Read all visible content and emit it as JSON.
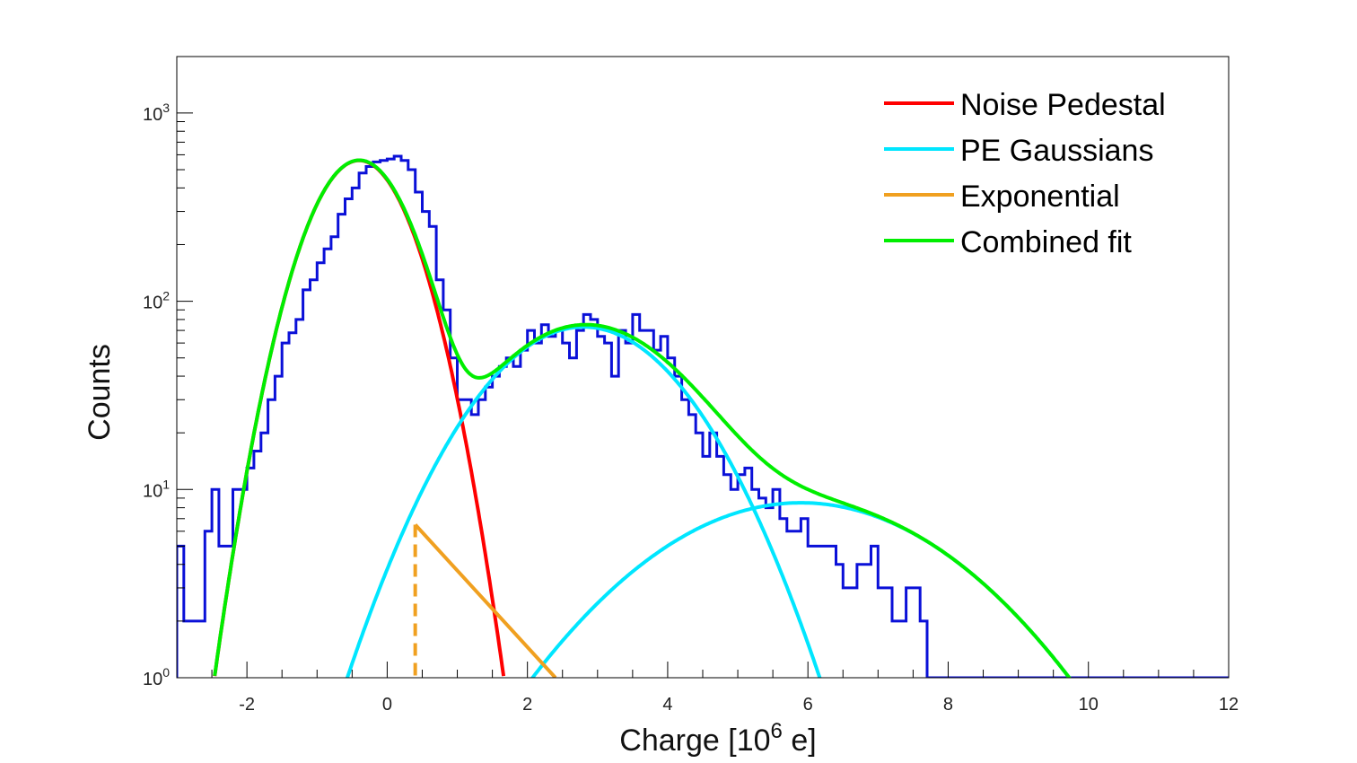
{
  "chart_data": {
    "type": "line",
    "xlabel": "Charge [10",
    "xlabel_sup": "6",
    "xlabel_suffix": " e]",
    "ylabel": "Counts",
    "x_range": [
      -3,
      12
    ],
    "y_range_log10": [
      0,
      3.3
    ],
    "y_scale": "log",
    "x_ticks": [
      -2,
      0,
      2,
      4,
      6,
      8,
      10,
      12
    ],
    "x_tick_labels": [
      "-2",
      "0",
      "2",
      "4",
      "6",
      "8",
      "10",
      "12"
    ],
    "y_ticks": [
      {
        "base": "10",
        "exp": "0",
        "value": 1
      },
      {
        "base": "10",
        "exp": "1",
        "value": 10
      },
      {
        "base": "10",
        "exp": "2",
        "value": 100
      },
      {
        "base": "10",
        "exp": "3",
        "value": 1000
      }
    ],
    "legend": {
      "placement": "top-right",
      "entries": [
        {
          "label": "Noise Pedestal",
          "color": "#ff0000"
        },
        {
          "label": "PE Gaussians",
          "color": "#00e6ff"
        },
        {
          "label": "Exponential",
          "color": "#f0a020"
        },
        {
          "label": "Combined fit",
          "color": "#00ee00"
        }
      ]
    },
    "histogram": {
      "name": "Data",
      "color": "#0a10d8",
      "bin_width": 0.1,
      "x_start": -3.0,
      "counts": [
        5,
        2,
        2,
        2,
        6,
        10,
        5,
        5,
        10,
        10,
        13,
        16,
        20,
        30,
        40,
        60,
        68,
        80,
        115,
        130,
        160,
        190,
        220,
        290,
        350,
        400,
        480,
        520,
        550,
        560,
        570,
        590,
        560,
        500,
        380,
        300,
        250,
        130,
        90,
        50,
        30,
        30,
        25,
        30,
        35,
        40,
        45,
        50,
        45,
        55,
        70,
        60,
        75,
        65,
        70,
        60,
        50,
        70,
        85,
        80,
        65,
        60,
        40,
        70,
        60,
        85,
        70,
        70,
        55,
        65,
        50,
        40,
        30,
        25,
        20,
        15,
        20,
        15,
        12,
        10,
        12,
        13,
        10,
        9,
        8,
        10,
        7,
        6,
        6,
        7,
        5,
        5,
        5,
        5,
        4,
        3,
        3,
        4,
        4,
        5,
        3,
        3,
        2,
        2,
        3,
        3,
        2,
        1,
        1,
        1,
        1,
        1,
        1,
        1,
        1,
        1,
        1,
        1,
        1,
        1,
        1,
        1,
        1,
        1,
        1,
        1,
        1,
        1,
        1,
        1,
        1,
        1,
        1,
        1,
        1,
        1,
        1,
        1,
        1,
        1,
        1,
        1,
        1,
        1,
        1,
        1,
        1,
        1,
        1,
        1,
        1
      ]
    },
    "curves": {
      "pedestal": {
        "amplitude": 560,
        "mean": -0.4,
        "sigma": 0.58
      },
      "pe_gaussians": [
        {
          "amplitude": 73,
          "mean": 2.8,
          "sigma": 1.15
        },
        {
          "amplitude": 8.5,
          "mean": 5.9,
          "sigma": 1.85
        }
      ],
      "exponential": {
        "start": 0.4,
        "amplitude": 6.5,
        "slope_per_unit": -0.935,
        "end": 2.4
      }
    }
  }
}
